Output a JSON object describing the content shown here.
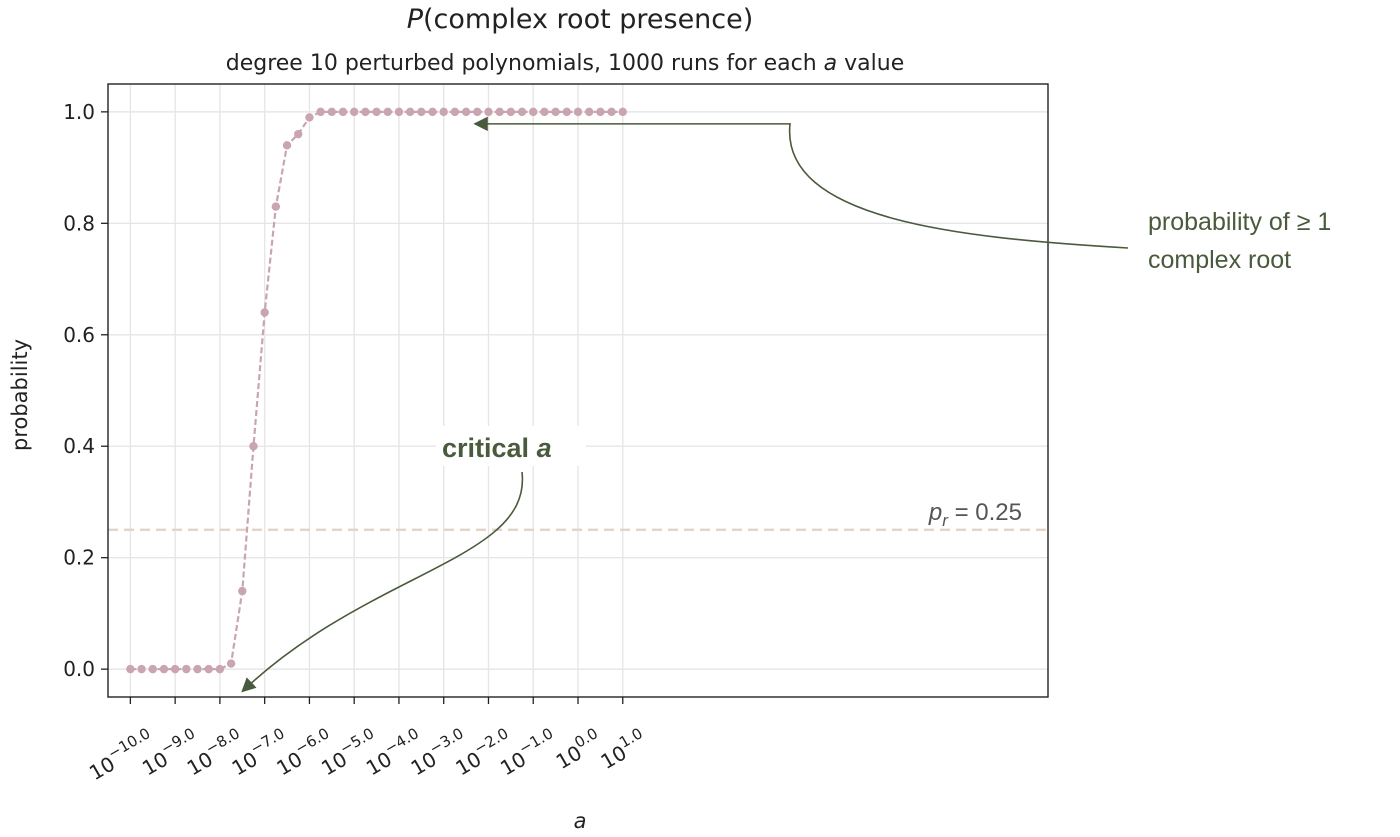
{
  "chart_data": {
    "type": "line",
    "title_prefix": "P",
    "title_rest": "(complex root presence)",
    "subtitle_pre": "degree 10 perturbed polynomials, 1000 runs for each ",
    "subtitle_var": "a",
    "subtitle_post": " value",
    "xlabel": "a",
    "ylabel": "probability",
    "x_scale": "log10",
    "xlim_exp": [
      -10.5,
      10.5
    ],
    "ylim": [
      -0.05,
      1.05
    ],
    "grid": true,
    "xticks_exp": [
      -10,
      -9,
      -8,
      -7,
      -6,
      -5,
      -4,
      -3,
      -2,
      -1,
      0,
      1
    ],
    "xtick_exp_labels": [
      "−10.0",
      "−9.0",
      "−8.0",
      "−7.0",
      "−6.0",
      "−5.0",
      "−4.0",
      "−3.0",
      "−2.0",
      "−1.0",
      "0.0",
      "1.0"
    ],
    "xtick_base": "10",
    "yticks": [
      0.0,
      0.2,
      0.4,
      0.6,
      0.8,
      1.0
    ],
    "ytick_labels": [
      "0.0",
      "0.2",
      "0.4",
      "0.6",
      "0.8",
      "1.0"
    ],
    "series": [
      {
        "color": "#c9a5b0",
        "x_exp": [
          -10.0,
          -9.75,
          -9.5,
          -9.25,
          -9.0,
          -8.75,
          -8.5,
          -8.25,
          -8.0,
          -7.75,
          -7.5,
          -7.25,
          -7.0,
          -6.75,
          -6.5,
          -6.25,
          -6.0,
          -5.75,
          -5.5,
          -5.25,
          -5.0,
          -4.75,
          -4.5,
          -4.25,
          -4.0,
          -3.75,
          -3.5,
          -3.25,
          -3.0,
          -2.75,
          -2.5,
          -2.25,
          -2.0,
          -1.75,
          -1.5,
          -1.25,
          -1.0,
          -0.75,
          -0.5,
          -0.25,
          0.0,
          0.25,
          0.5,
          0.75,
          1.0
        ],
        "y": [
          0.0,
          0.0,
          0.0,
          0.0,
          0.0,
          0.0,
          0.0,
          0.0,
          0.0,
          0.01,
          0.14,
          0.4,
          0.64,
          0.83,
          0.94,
          0.96,
          0.99,
          1.0,
          1.0,
          1.0,
          1.0,
          1.0,
          1.0,
          1.0,
          1.0,
          1.0,
          1.0,
          1.0,
          1.0,
          1.0,
          1.0,
          1.0,
          1.0,
          1.0,
          1.0,
          1.0,
          1.0,
          1.0,
          1.0,
          1.0,
          1.0,
          1.0,
          1.0,
          1.0,
          1.0
        ]
      }
    ],
    "reference_line": {
      "y": 0.25,
      "color": "#e2d4c6",
      "label_var": "p",
      "label_sub": "r",
      "label_rest": " = 0.25"
    },
    "annotations": [
      {
        "lines": [
          "probability of ≥ 1",
          "complex root"
        ],
        "target_x_exp": -2.35,
        "target_y": 1.0
      },
      {
        "lines_pre": "critical ",
        "lines_var": "a",
        "target_x_exp": -7.5,
        "target_y": -0.04
      }
    ],
    "colors": {
      "annotation": "#4a5a3c",
      "grid": "#e6e6e6"
    }
  }
}
